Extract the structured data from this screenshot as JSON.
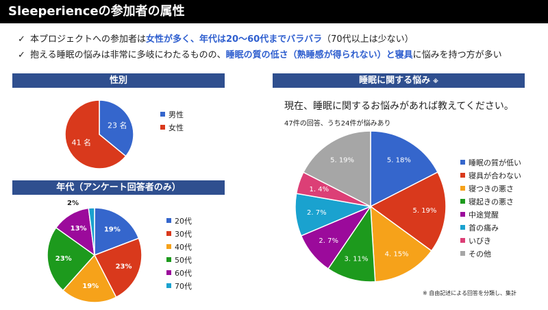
{
  "title": "Sleeperienceの参加者の属性",
  "bullets": [
    {
      "check": "✓",
      "parts": [
        {
          "t": "本プロジェクトへの参加者は",
          "hl": false
        },
        {
          "t": "女性が多く、年代は20〜60代までバラバラ",
          "hl": true
        },
        {
          "t": "（70代以上は少ない）",
          "hl": false
        }
      ]
    },
    {
      "check": "✓",
      "parts": [
        {
          "t": "抱える睡眠の悩みは非常に多岐にわたるものの、",
          "hl": false
        },
        {
          "t": "睡眠の質の低さ（熟睡感が得られない）と寝具",
          "hl": true
        },
        {
          "t": "に悩みを持つ方が多い",
          "hl": false
        }
      ]
    }
  ],
  "sections": {
    "gender": "性別",
    "age": "年代（アンケート回答者のみ）",
    "sleep": "睡眠に関する悩み",
    "sleep_mark": "※"
  },
  "sleep_question": "現在、睡眠に関するお悩みがあれば教えてください。",
  "sleep_subnote": "47件の回答、うち24件が悩みあり",
  "footnote": "※ 自由記述による回答を分類し、集計",
  "chart_data": [
    {
      "type": "pie",
      "name": "gender",
      "categories": [
        "男性",
        "女性"
      ],
      "values": [
        23,
        41
      ],
      "labels": [
        "23 名",
        "41 名"
      ],
      "colors": [
        "#3566cc",
        "#d9391c"
      ]
    },
    {
      "type": "pie",
      "name": "age",
      "categories": [
        "20代",
        "30代",
        "40代",
        "50代",
        "60代",
        "70代"
      ],
      "values": [
        19,
        23,
        19,
        23,
        13,
        2
      ],
      "labels": [
        "19%",
        "23%",
        "19%",
        "23%",
        "13%",
        "2%"
      ],
      "colors": [
        "#3566cc",
        "#d9391c",
        "#f6a21a",
        "#1d9a1d",
        "#9b0a9b",
        "#1aa2cf"
      ]
    },
    {
      "type": "pie",
      "name": "sleep",
      "categories": [
        "睡眠の質が低い",
        "寝具が合わない",
        "寝つきの悪さ",
        "寝起きの悪さ",
        "中途覚醒",
        "首の痛み",
        "いびき",
        "その他"
      ],
      "values": [
        5.18,
        5.19,
        4.15,
        3.11,
        2.7,
        2.7,
        1.4,
        5.19
      ],
      "labels": [
        "5. 18%",
        "5. 19%",
        "4. 15%",
        "3. 11%",
        "2. 7%",
        "2. 7%",
        "1. 4%",
        "5. 19%"
      ],
      "colors": [
        "#3566cc",
        "#d9391c",
        "#f6a21a",
        "#1d9a1d",
        "#9b0a9b",
        "#1aa2cf",
        "#dc3f76",
        "#a6a6a6"
      ]
    }
  ]
}
